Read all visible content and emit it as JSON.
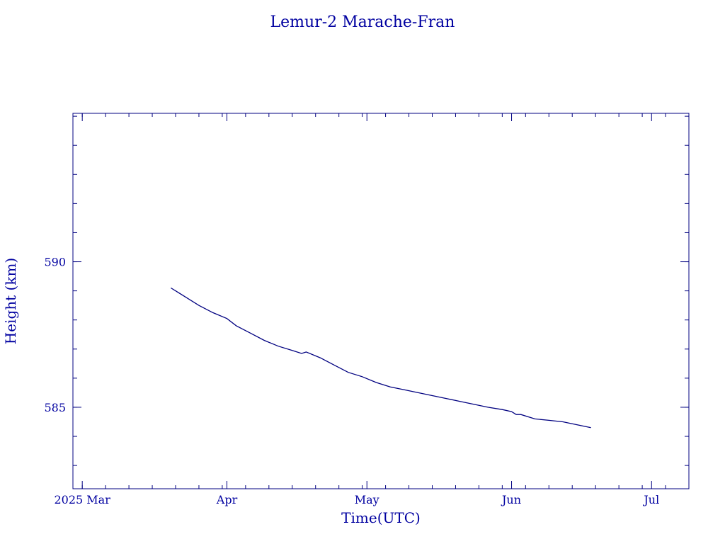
{
  "chart_data": {
    "type": "line",
    "title": "Lemur-2 Marache-Fran",
    "xlabel": "Time(UTC)",
    "ylabel": "Height (km)",
    "colors": {
      "axis": "#000080",
      "text": "#0000a0",
      "line": "#000080"
    },
    "xlim": [
      "2025-02-27",
      "2025-07-09"
    ],
    "ylim": [
      582.2,
      595.1
    ],
    "x_ticks": [
      {
        "date": "2025-03-01",
        "label": "2025 Mar"
      },
      {
        "date": "2025-04-01",
        "label": "Apr"
      },
      {
        "date": "2025-05-01",
        "label": "May"
      },
      {
        "date": "2025-06-01",
        "label": "Jun"
      },
      {
        "date": "2025-07-01",
        "label": "Jul"
      }
    ],
    "y_ticks": [
      585,
      590
    ],
    "grid": false,
    "series": [
      {
        "x": [
          "2025-03-20",
          "2025-03-23",
          "2025-03-26",
          "2025-03-29",
          "2025-04-01",
          "2025-04-03",
          "2025-04-06",
          "2025-04-09",
          "2025-04-12",
          "2025-04-15",
          "2025-04-17",
          "2025-04-18",
          "2025-04-21",
          "2025-04-24",
          "2025-04-27",
          "2025-04-30",
          "2025-05-03",
          "2025-05-06",
          "2025-05-09",
          "2025-05-12",
          "2025-05-15",
          "2025-05-18",
          "2025-05-21",
          "2025-05-24",
          "2025-05-27",
          "2025-05-30",
          "2025-06-01",
          "2025-06-02",
          "2025-06-03",
          "2025-06-06",
          "2025-06-09",
          "2025-06-12",
          "2025-06-15",
          "2025-06-18"
        ],
        "y": [
          589.1,
          588.8,
          588.5,
          588.25,
          588.05,
          587.8,
          587.55,
          587.3,
          587.1,
          586.95,
          586.85,
          586.9,
          586.7,
          586.45,
          586.2,
          586.05,
          585.85,
          585.7,
          585.6,
          585.5,
          585.4,
          585.3,
          585.2,
          585.1,
          585.0,
          584.92,
          584.85,
          584.75,
          584.75,
          584.6,
          584.55,
          584.5,
          584.4,
          584.3
        ]
      }
    ]
  }
}
